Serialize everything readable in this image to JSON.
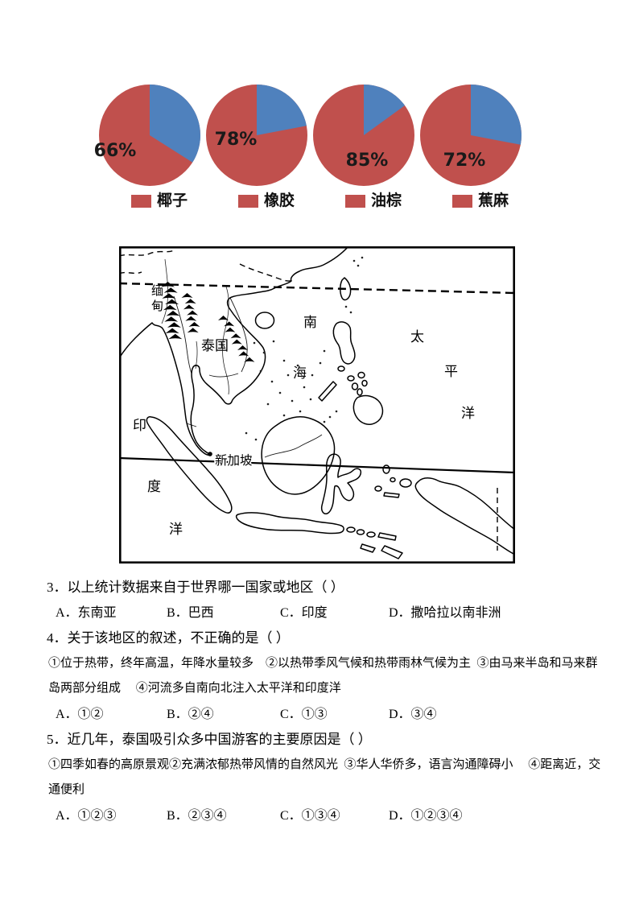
{
  "colors": {
    "pie_main": "#c0504d",
    "pie_other": "#4f81bd",
    "ink": "#000000"
  },
  "chart_data": {
    "type": "pie",
    "description": "Four pie charts of tropical cash crop production share",
    "colors": {
      "main": "#c0504d",
      "other": "#4f81bd"
    },
    "legend_position": "bottom",
    "charts": [
      {
        "legend_label": "椰子",
        "main_pct": 66,
        "other_pct": 34
      },
      {
        "legend_label": "橡胶",
        "main_pct": 78,
        "other_pct": 22
      },
      {
        "legend_label": "油棕",
        "main_pct": 85,
        "other_pct": 15
      },
      {
        "legend_label": "蕉麻",
        "main_pct": 72,
        "other_pct": 28
      }
    ]
  },
  "map": {
    "labels": {
      "myanmar": "缅甸",
      "thailand": "泰国",
      "south_china_sea": "南海",
      "pacific_ocean": "太平洋",
      "singapore": "新加坡",
      "indian_ocean": "印度洋"
    }
  },
  "questions": [
    {
      "text": "3．以上统计数据来自于世界哪一国家或地区（ ）",
      "options": [
        "A．东南亚",
        "B．巴西",
        "C．印度",
        "D．撒哈拉以南非洲"
      ]
    },
    {
      "text": "4．关于该地区的叙述，不正确的是（ ）",
      "detail_lines": [
        "①位于热带，终年高温，年降水量较多　②以热带季风气候和热带雨林气候为主  ③由马来半岛和马来群",
        "岛两部分组成　 ④河流多自南向北注入太平洋和印度洋"
      ],
      "options": [
        "A．①②",
        "B．②④",
        "C．①③",
        "D．③④"
      ]
    },
    {
      "text": "5．近几年，泰国吸引众多中国游客的主要原因是（ ）",
      "detail_lines": [
        "①四季如春的高原景观②充满浓郁热带风情的自然风光  ③华人华侨多，语言沟通障碍小　 ④距离近，交",
        "通便利"
      ],
      "options": [
        "A．①②③",
        "B．②③④",
        "C．①③④",
        "D．①②③④"
      ]
    }
  ]
}
